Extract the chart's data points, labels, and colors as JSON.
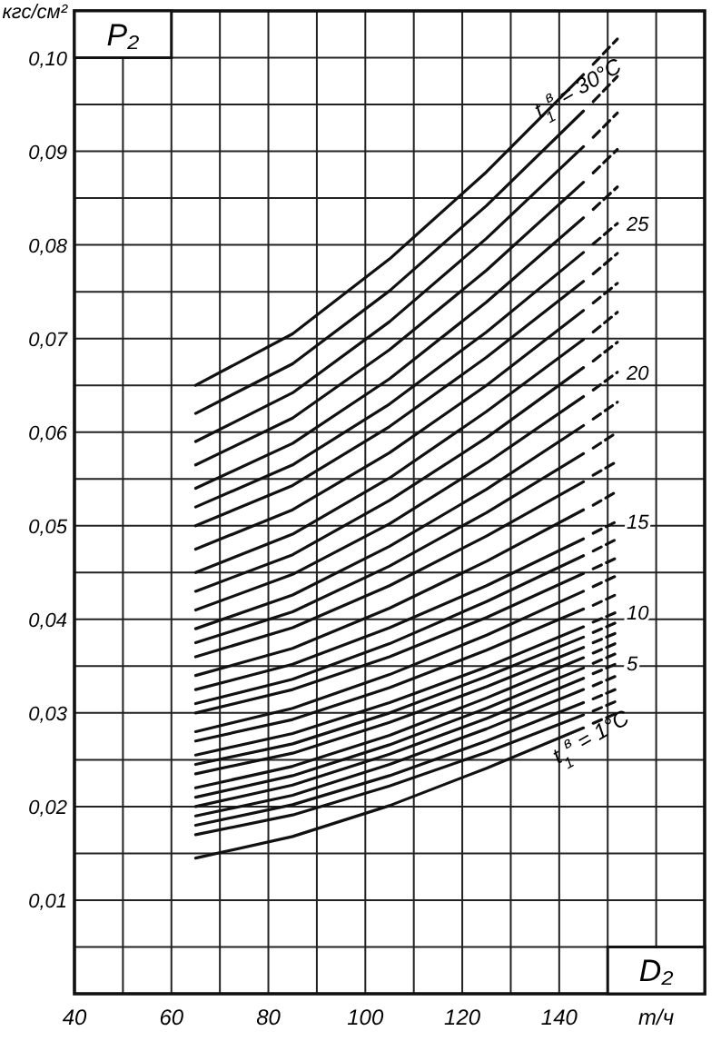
{
  "chart_data": {
    "type": "line",
    "xlabel": "D₂",
    "ylabel": "P₂",
    "xlim": [
      40,
      170
    ],
    "ylim": [
      0,
      0.105
    ],
    "xticks": [
      40,
      {
        "value": 50,
        "label": null
      },
      60,
      {
        "value": 70,
        "label": null
      },
      80,
      {
        "value": 90,
        "label": null
      },
      100,
      {
        "value": 110,
        "label": null
      },
      120,
      {
        "value": 130,
        "label": null
      },
      140,
      {
        "value": 150,
        "label": null
      },
      {
        "value": 160,
        "label": "т/ч"
      },
      {
        "value": 170,
        "label": null
      }
    ],
    "yticks": [
      {
        "value": 0,
        "label": null
      },
      {
        "value": 0.005,
        "label": null
      },
      {
        "value": 0.01,
        "label": "0,01"
      },
      {
        "value": 0.015,
        "label": null
      },
      {
        "value": 0.02,
        "label": "0,02"
      },
      {
        "value": 0.025,
        "label": null
      },
      {
        "value": 0.03,
        "label": "0,03"
      },
      {
        "value": 0.035,
        "label": null
      },
      {
        "value": 0.04,
        "label": "0,04"
      },
      {
        "value": 0.045,
        "label": null
      },
      {
        "value": 0.05,
        "label": "0,05"
      },
      {
        "value": 0.055,
        "label": null
      },
      {
        "value": 0.06,
        "label": "0,06"
      },
      {
        "value": 0.065,
        "label": null
      },
      {
        "value": 0.07,
        "label": "0,07"
      },
      {
        "value": 0.075,
        "label": null
      },
      {
        "value": 0.08,
        "label": "0,08"
      },
      {
        "value": 0.085,
        "label": null
      },
      {
        "value": 0.09,
        "label": "0,09"
      },
      {
        "value": 0.095,
        "label": null
      },
      {
        "value": 0.1,
        "label": "0,10"
      },
      {
        "value": 0.105,
        "label": "кгс/см²"
      }
    ],
    "grid": true,
    "annotations": [
      {
        "text": "t$_{1}$$^{в}$ = 30°C",
        "x": 136,
        "y": 0.0935
      },
      {
        "text": "25",
        "x": 152,
        "y": 0.0823
      },
      {
        "text": "20",
        "x": 152,
        "y": 0.0664
      },
      {
        "text": "15",
        "x": 152,
        "y": 0.0505
      },
      {
        "text": "10",
        "x": 152,
        "y": 0.0408
      },
      {
        "text": "5",
        "x": 152,
        "y": 0.0353
      },
      {
        "text": "t$_{1}$$^{в}$ = 1°C",
        "x": 145,
        "y": 0.0284
      }
    ],
    "series": [
      {
        "color": "#111111",
        "x": [
          65,
          85,
          105,
          125,
          145
        ],
        "values": [
          0.0145,
          0.0168,
          0.0201,
          0.0241,
          0.0284
        ]
      },
      {
        "color": "#111111",
        "x": [
          65,
          85,
          105,
          125,
          145
        ],
        "values": [
          0.017,
          0.0191,
          0.0222,
          0.0258,
          0.0298
        ]
      },
      {
        "color": "#111111",
        "x": [
          65,
          85,
          105,
          125,
          145
        ],
        "values": [
          0.018,
          0.0202,
          0.0233,
          0.027,
          0.0311
        ]
      },
      {
        "color": "#111111",
        "x": [
          65,
          85,
          105,
          125,
          145
        ],
        "values": [
          0.019,
          0.0212,
          0.0245,
          0.0283,
          0.0325
        ]
      },
      {
        "color": "#111111",
        "x": [
          65,
          85,
          105,
          125,
          145
        ],
        "values": [
          0.02,
          0.0223,
          0.0256,
          0.0294,
          0.0337
        ]
      },
      {
        "color": "#111111",
        "x": [
          65,
          85,
          105,
          125,
          145
        ],
        "values": [
          0.021,
          0.0233,
          0.0266,
          0.0305,
          0.0348
        ]
      },
      {
        "color": "#111111",
        "x": [
          65,
          85,
          105,
          125,
          145
        ],
        "values": [
          0.022,
          0.0243,
          0.0276,
          0.0316,
          0.0359
        ]
      },
      {
        "color": "#111111",
        "x": [
          65,
          85,
          105,
          125,
          145
        ],
        "values": [
          0.0235,
          0.0257,
          0.029,
          0.0328,
          0.037
        ]
      },
      {
        "color": "#111111",
        "x": [
          65,
          85,
          105,
          125,
          145
        ],
        "values": [
          0.0245,
          0.0267,
          0.03,
          0.0339,
          0.0381
        ]
      },
      {
        "color": "#111111",
        "x": [
          65,
          85,
          105,
          125,
          145
        ],
        "values": [
          0.0255,
          0.0278,
          0.0311,
          0.0349,
          0.0392
        ]
      },
      {
        "color": "#111111",
        "x": [
          65,
          85,
          105,
          125,
          145
        ],
        "values": [
          0.027,
          0.0293,
          0.0327,
          0.0367,
          0.0411
        ]
      },
      {
        "color": "#111111",
        "x": [
          65,
          85,
          105,
          125,
          145
        ],
        "values": [
          0.028,
          0.0305,
          0.0341,
          0.0383,
          0.043
        ]
      },
      {
        "color": "#111111",
        "x": [
          65,
          85,
          105,
          125,
          145
        ],
        "values": [
          0.03,
          0.0325,
          0.036,
          0.0402,
          0.0449
        ]
      },
      {
        "color": "#111111",
        "x": [
          65,
          85,
          105,
          125,
          145
        ],
        "values": [
          0.031,
          0.0336,
          0.0374,
          0.0419,
          0.0468
        ]
      },
      {
        "color": "#111111",
        "x": [
          65,
          85,
          105,
          125,
          145
        ],
        "values": [
          0.0325,
          0.0352,
          0.0391,
          0.0436,
          0.0486
        ]
      },
      {
        "color": "#111111",
        "x": [
          65,
          85,
          105,
          125,
          145
        ],
        "values": [
          0.034,
          0.0369,
          0.0412,
          0.0462,
          0.0517
        ]
      },
      {
        "color": "#111111",
        "x": [
          65,
          85,
          105,
          125,
          145
        ],
        "values": [
          0.036,
          0.0391,
          0.0436,
          0.0489,
          0.0547
        ]
      },
      {
        "color": "#111111",
        "x": [
          65,
          85,
          105,
          125,
          145
        ],
        "values": [
          0.0375,
          0.0408,
          0.0457,
          0.0514,
          0.0577
        ]
      },
      {
        "color": "#111111",
        "x": [
          65,
          85,
          105,
          125,
          145
        ],
        "values": [
          0.039,
          0.0426,
          0.0478,
          0.0539,
          0.0607
        ]
      },
      {
        "color": "#111111",
        "x": [
          65,
          85,
          105,
          125,
          145
        ],
        "values": [
          0.041,
          0.0448,
          0.0502,
          0.0567,
          0.0638
        ]
      },
      {
        "color": "#111111",
        "x": [
          65,
          85,
          105,
          125,
          145
        ],
        "values": [
          0.043,
          0.0469,
          0.0527,
          0.0594,
          0.0669
        ]
      },
      {
        "color": "#111111",
        "x": [
          65,
          85,
          105,
          125,
          145
        ],
        "values": [
          0.045,
          0.0491,
          0.0551,
          0.0622,
          0.0699
        ]
      },
      {
        "color": "#111111",
        "x": [
          65,
          85,
          105,
          125,
          145
        ],
        "values": [
          0.0475,
          0.0517,
          0.0578,
          0.065,
          0.073
        ]
      },
      {
        "color": "#111111",
        "x": [
          65,
          85,
          105,
          125,
          145
        ],
        "values": [
          0.05,
          0.0543,
          0.0606,
          0.068,
          0.0761
        ]
      },
      {
        "color": "#111111",
        "x": [
          65,
          85,
          105,
          125,
          145
        ],
        "values": [
          0.052,
          0.0565,
          0.063,
          0.0707,
          0.0792
        ]
      },
      {
        "color": "#111111",
        "x": [
          65,
          85,
          105,
          125,
          145
        ],
        "values": [
          0.054,
          0.0588,
          0.0657,
          0.0739,
          0.0829
        ]
      },
      {
        "color": "#111111",
        "x": [
          65,
          85,
          105,
          125,
          145
        ],
        "values": [
          0.0565,
          0.0615,
          0.0688,
          0.0773,
          0.0867
        ]
      },
      {
        "color": "#111111",
        "x": [
          65,
          85,
          105,
          125,
          145
        ],
        "values": [
          0.059,
          0.0642,
          0.0718,
          0.0807,
          0.0905
        ]
      },
      {
        "color": "#111111",
        "x": [
          65,
          85,
          105,
          125,
          145
        ],
        "values": [
          0.062,
          0.0673,
          0.0751,
          0.0842,
          0.0943
        ]
      },
      {
        "color": "#111111",
        "x": [
          65,
          85,
          105,
          125,
          145
        ],
        "values": [
          0.065,
          0.0705,
          0.0785,
          0.0878,
          0.0982
        ]
      },
      {
        "color": "#111111",
        "line_style": "dashed",
        "x": [
          147,
          152
        ],
        "values": [
          0.0289,
          0.03
        ]
      },
      {
        "color": "#111111",
        "line_style": "dashed",
        "x": [
          147,
          152
        ],
        "values": [
          0.0302,
          0.0313
        ]
      },
      {
        "color": "#111111",
        "line_style": "dashed",
        "x": [
          147,
          152
        ],
        "values": [
          0.0315,
          0.0326
        ]
      },
      {
        "color": "#111111",
        "line_style": "dashed",
        "x": [
          147,
          152
        ],
        "values": [
          0.0329,
          0.034
        ]
      },
      {
        "color": "#111111",
        "line_style": "dashed",
        "x": [
          147,
          152
        ],
        "values": [
          0.0342,
          0.0353
        ]
      },
      {
        "color": "#111111",
        "line_style": "dashed",
        "x": [
          147,
          152
        ],
        "values": [
          0.0353,
          0.0364
        ]
      },
      {
        "color": "#111111",
        "line_style": "dashed",
        "x": [
          147,
          152
        ],
        "values": [
          0.0364,
          0.0375
        ]
      },
      {
        "color": "#111111",
        "line_style": "dashed",
        "x": [
          147,
          152
        ],
        "values": [
          0.0375,
          0.0386
        ]
      },
      {
        "color": "#111111",
        "line_style": "dashed",
        "x": [
          147,
          152
        ],
        "values": [
          0.0386,
          0.0397
        ]
      },
      {
        "color": "#111111",
        "line_style": "dashed",
        "x": [
          147,
          152
        ],
        "values": [
          0.0397,
          0.0408
        ]
      },
      {
        "color": "#111111",
        "line_style": "dashed",
        "x": [
          147,
          152
        ],
        "values": [
          0.0415,
          0.0427
        ]
      },
      {
        "color": "#111111",
        "line_style": "dashed",
        "x": [
          147,
          152
        ],
        "values": [
          0.0435,
          0.0447
        ]
      },
      {
        "color": "#111111",
        "line_style": "dashed",
        "x": [
          147,
          152
        ],
        "values": [
          0.0454,
          0.0466
        ]
      },
      {
        "color": "#111111",
        "line_style": "dashed",
        "x": [
          147,
          152
        ],
        "values": [
          0.0473,
          0.0486
        ]
      },
      {
        "color": "#111111",
        "line_style": "dashed",
        "x": [
          147,
          152
        ],
        "values": [
          0.0492,
          0.0505
        ]
      },
      {
        "color": "#111111",
        "line_style": "dashed",
        "x": [
          147,
          152
        ],
        "values": [
          0.0522,
          0.0537
        ]
      },
      {
        "color": "#111111",
        "line_style": "dashed",
        "x": [
          147,
          152
        ],
        "values": [
          0.0554,
          0.0569
        ]
      },
      {
        "color": "#111111",
        "line_style": "dashed",
        "x": [
          147,
          152
        ],
        "values": [
          0.0583,
          0.06
        ]
      },
      {
        "color": "#111111",
        "line_style": "dashed",
        "x": [
          147,
          152
        ],
        "values": [
          0.0614,
          0.0632
        ]
      },
      {
        "color": "#111111",
        "line_style": "dashed",
        "x": [
          147,
          152
        ],
        "values": [
          0.0645,
          0.0664
        ]
      },
      {
        "color": "#111111",
        "line_style": "dashed",
        "x": [
          147,
          152
        ],
        "values": [
          0.0676,
          0.0696
        ]
      },
      {
        "color": "#111111",
        "line_style": "dashed",
        "x": [
          147,
          152
        ],
        "values": [
          0.0707,
          0.0728
        ]
      },
      {
        "color": "#111111",
        "line_style": "dashed",
        "x": [
          147,
          152
        ],
        "values": [
          0.0738,
          0.0759
        ]
      },
      {
        "color": "#111111",
        "line_style": "dashed",
        "x": [
          147,
          152
        ],
        "values": [
          0.0769,
          0.0791
        ]
      },
      {
        "color": "#111111",
        "line_style": "dashed",
        "x": [
          147,
          152
        ],
        "values": [
          0.0801,
          0.0823
        ]
      },
      {
        "color": "#111111",
        "line_style": "dashed",
        "x": [
          147,
          152
        ],
        "values": [
          0.0838,
          0.0862
        ]
      },
      {
        "color": "#111111",
        "line_style": "dashed",
        "x": [
          147,
          152
        ],
        "values": [
          0.0877,
          0.0902
        ]
      },
      {
        "color": "#111111",
        "line_style": "dashed",
        "x": [
          147,
          152
        ],
        "values": [
          0.0915,
          0.0941
        ]
      },
      {
        "color": "#111111",
        "line_style": "dashed",
        "x": [
          147,
          152
        ],
        "values": [
          0.0953,
          0.098
        ]
      },
      {
        "color": "#111111",
        "line_style": "dashed",
        "x": [
          147,
          152
        ],
        "values": [
          0.0993,
          0.102
        ]
      }
    ]
  }
}
